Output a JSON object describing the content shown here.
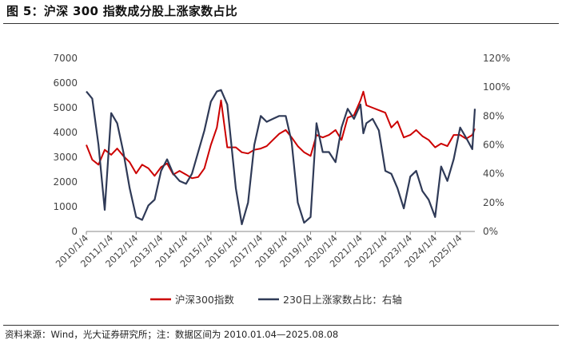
{
  "header": {
    "title": "图 5：沪深 300 指数成分股上涨家数占比"
  },
  "footer": {
    "source": "资料来源：Wind，光大证券研究所；注：数据区间为 2010.01.04—2025.08.08"
  },
  "colors": {
    "index_line": "#cc0000",
    "ratio_line": "#2f3a57"
  },
  "chart_data": {
    "type": "line",
    "title": "",
    "x": [
      "2010/1/4",
      "2010/4/1",
      "2010/7/1",
      "2010/10/1",
      "2011/1/4",
      "2011/4/1",
      "2011/7/1",
      "2011/10/1",
      "2012/1/4",
      "2012/4/1",
      "2012/7/1",
      "2012/10/1",
      "2013/1/4",
      "2013/4/1",
      "2013/7/1",
      "2013/10/1",
      "2014/1/4",
      "2014/4/1",
      "2014/7/1",
      "2014/10/1",
      "2015/1/4",
      "2015/4/1",
      "2015/6/1",
      "2015/9/1",
      "2016/1/4",
      "2016/4/1",
      "2016/7/1",
      "2016/10/1",
      "2017/1/4",
      "2017/4/1",
      "2017/7/1",
      "2017/10/1",
      "2018/1/4",
      "2018/4/1",
      "2018/7/1",
      "2018/10/1",
      "2019/1/4",
      "2019/4/1",
      "2019/7/1",
      "2019/10/1",
      "2020/1/4",
      "2020/4/1",
      "2020/7/1",
      "2020/10/1",
      "2021/1/4",
      "2021/2/15",
      "2021/4/1",
      "2021/7/1",
      "2021/10/1",
      "2022/1/4",
      "2022/4/1",
      "2022/7/1",
      "2022/10/1",
      "2023/1/4",
      "2023/4/1",
      "2023/7/1",
      "2023/10/1",
      "2024/1/4",
      "2024/4/1",
      "2024/7/1",
      "2024/10/1",
      "2025/1/4",
      "2025/4/1",
      "2025/7/1",
      "2025/8/8"
    ],
    "x_ticks": [
      "2010/1/4",
      "2011/1/4",
      "2012/1/4",
      "2013/1/4",
      "2014/1/4",
      "2015/1/4",
      "2016/1/4",
      "2017/1/4",
      "2018/1/4",
      "2019/1/4",
      "2020/1/4",
      "2021/1/4",
      "2022/1/4",
      "2023/1/4",
      "2024/1/4",
      "2025/1/4"
    ],
    "series": [
      {
        "name": "沪深300指数",
        "axis": "left",
        "values": [
          3500,
          2900,
          2700,
          3300,
          3100,
          3350,
          3050,
          2800,
          2350,
          2700,
          2550,
          2250,
          2600,
          2750,
          2300,
          2450,
          2300,
          2150,
          2200,
          2550,
          3500,
          4200,
          5300,
          3400,
          3400,
          3200,
          3150,
          3300,
          3350,
          3450,
          3700,
          3950,
          4100,
          3800,
          3450,
          3200,
          3050,
          3900,
          3800,
          3900,
          4100,
          3700,
          4600,
          4700,
          5300,
          5650,
          5100,
          5000,
          4900,
          4800,
          4200,
          4450,
          3800,
          3900,
          4100,
          3850,
          3700,
          3400,
          3550,
          3450,
          3900,
          3900,
          3750,
          3900,
          4150
        ]
      },
      {
        "name": "230日上涨家数占比：右轴",
        "axis": "right",
        "values": [
          97,
          92,
          60,
          15,
          82,
          75,
          55,
          30,
          10,
          8,
          18,
          22,
          42,
          50,
          40,
          35,
          33,
          40,
          55,
          70,
          90,
          97,
          98,
          88,
          30,
          5,
          20,
          60,
          80,
          76,
          78,
          80,
          80,
          62,
          20,
          6,
          10,
          75,
          55,
          55,
          48,
          72,
          85,
          78,
          88,
          68,
          75,
          78,
          70,
          42,
          40,
          30,
          16,
          38,
          42,
          28,
          22,
          10,
          45,
          35,
          50,
          72,
          65,
          57,
          85
        ]
      }
    ],
    "left_ylim": [
      0,
      7000
    ],
    "left_yticks": [
      0,
      1000,
      2000,
      3000,
      4000,
      5000,
      6000,
      7000
    ],
    "right_ylim": [
      0,
      120
    ],
    "right_yticks": [
      "0%",
      "20%",
      "40%",
      "60%",
      "80%",
      "100%",
      "120%"
    ],
    "legend_position": "bottom-center",
    "grid": false
  }
}
